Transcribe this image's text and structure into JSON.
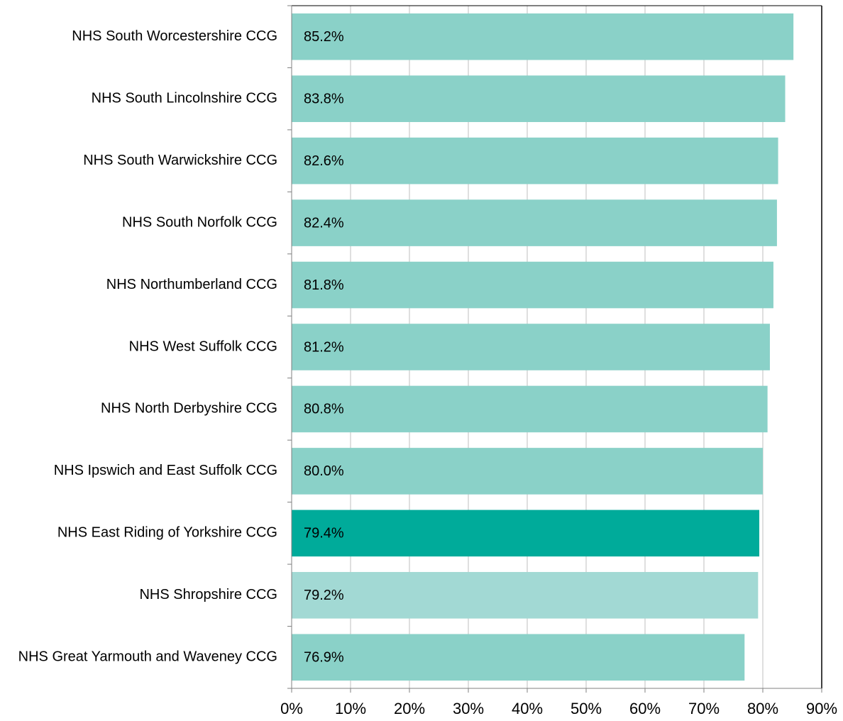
{
  "chart_data": {
    "type": "hbar",
    "categories": [
      "NHS South Worcestershire CCG",
      "NHS South Lincolnshire CCG",
      "NHS South Warwickshire CCG",
      "NHS South Norfolk CCG",
      "NHS Northumberland CCG",
      "NHS West Suffolk CCG",
      "NHS North Derbyshire CCG",
      "NHS Ipswich and East Suffolk CCG",
      "NHS East Riding of Yorkshire CCG",
      "NHS Shropshire CCG",
      "NHS Great Yarmouth and Waveney CCG"
    ],
    "values": [
      85.2,
      83.8,
      82.6,
      82.4,
      81.8,
      81.2,
      80.8,
      80.0,
      79.4,
      79.2,
      76.9
    ],
    "value_labels": [
      "85.2%",
      "83.8%",
      "82.6%",
      "82.4%",
      "81.8%",
      "81.2%",
      "80.8%",
      "80.0%",
      "79.4%",
      "79.2%",
      "76.9%"
    ],
    "colors": [
      "#8ad1c8",
      "#8ad1c8",
      "#8ad1c8",
      "#8ad1c8",
      "#8ad1c8",
      "#8ad1c8",
      "#8ad1c8",
      "#8ad1c8",
      "#00ab9a",
      "#a2d9d4",
      "#8ad1c8"
    ],
    "xlim": [
      0,
      90
    ],
    "xticks": [
      {
        "value": 0,
        "label": "0%"
      },
      {
        "value": 10,
        "label": "10%"
      },
      {
        "value": 20,
        "label": "20%"
      },
      {
        "value": 30,
        "label": "30%"
      },
      {
        "value": 40,
        "label": "40%"
      },
      {
        "value": 50,
        "label": "50%"
      },
      {
        "value": 60,
        "label": "60%"
      },
      {
        "value": 70,
        "label": "70%"
      },
      {
        "value": 80,
        "label": "80%"
      },
      {
        "value": 90,
        "label": "90%"
      }
    ],
    "grid": true
  }
}
